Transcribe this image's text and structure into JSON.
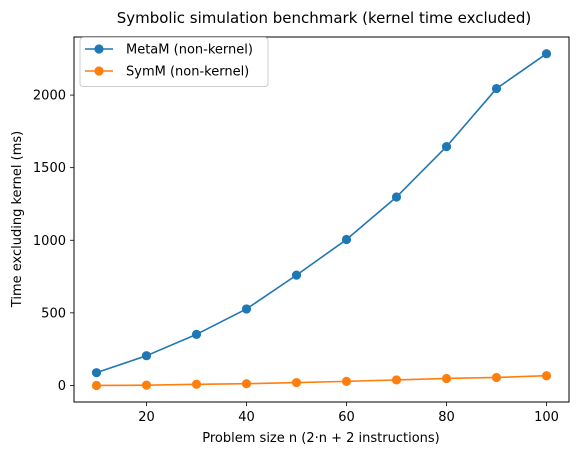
{
  "chart_data": {
    "type": "line",
    "title": "Symbolic simulation benchmark (kernel time excluded)",
    "xlabel": "Problem size n (2·n + 2 instructions)",
    "ylabel": "Time excluding kernel (ms)",
    "x": [
      10,
      20,
      30,
      40,
      50,
      60,
      70,
      80,
      90,
      100
    ],
    "xlim": [
      5.5,
      104.5
    ],
    "ylim": [
      -114,
      2400
    ],
    "xticks": [
      20,
      40,
      60,
      80,
      100
    ],
    "yticks": [
      0,
      500,
      1000,
      1500,
      2000
    ],
    "grid": false,
    "legend_position": "top-left",
    "series": [
      {
        "name": "MetaM (non-kernel)",
        "color": "#1f77b4",
        "values": [
          88,
          205,
          352,
          527,
          760,
          1005,
          1298,
          1645,
          2045,
          2285
        ]
      },
      {
        "name": "SymM (non-kernel)",
        "color": "#ff7f0e",
        "values": [
          0,
          2,
          8,
          12,
          20,
          28,
          38,
          48,
          55,
          67
        ]
      }
    ]
  }
}
